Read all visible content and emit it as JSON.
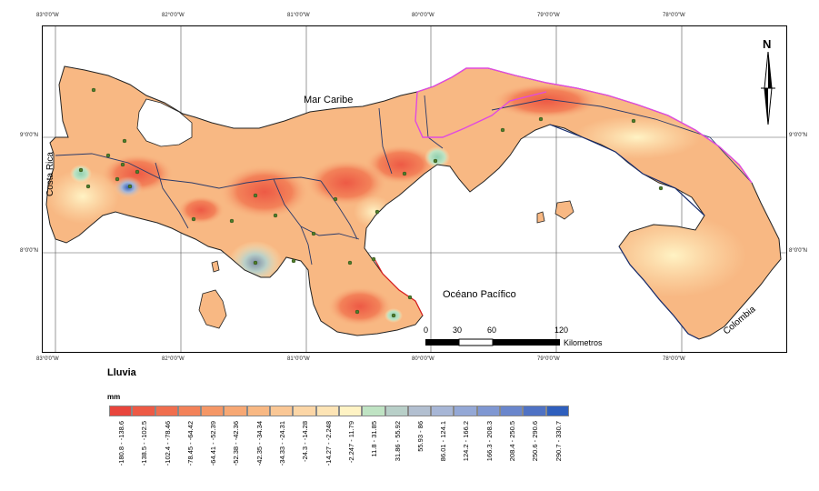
{
  "map": {
    "labels": {
      "caribbean": "Mar Caribe",
      "pacific": "Océano Pacífico",
      "costa_rica": "Costa Rica",
      "colombia": "Colombia",
      "north": "N"
    },
    "graticule": {
      "top": [
        "83°0'0\"W",
        "82°0'0\"W",
        "81°0'0\"W",
        "80°0'0\"W",
        "79°0'0\"W",
        "78°0'0\"W"
      ],
      "bottom": [
        "83°0'0\"W",
        "82°0'0\"W",
        "81°0'0\"W",
        "80°0'0\"W",
        "79°0'0\"W",
        "78°0'0\"W"
      ],
      "left": [
        "9°0'0\"N",
        "8°0'0\"N"
      ],
      "right": [
        "9°0'0\"N",
        "8°0'0\"N"
      ]
    },
    "scale_bar": {
      "ticks": [
        "0",
        "30",
        "60",
        "120"
      ],
      "unit": "Kilometros"
    }
  },
  "legend": {
    "title": "Lluvia",
    "unit": "mm",
    "classes": [
      {
        "label": "-180.8 - -138.6",
        "color": "#e8453c"
      },
      {
        "label": "-138.5 - -102.5",
        "color": "#ed5a45"
      },
      {
        "label": "-102.4 - -78.46",
        "color": "#f06e4e"
      },
      {
        "label": "-78.45 - -64.42",
        "color": "#f38259"
      },
      {
        "label": "-64.41 - -52.39",
        "color": "#f59766"
      },
      {
        "label": "-52.38 - -42.36",
        "color": "#f7a874"
      },
      {
        "label": "-42.35 - -34.34",
        "color": "#f8b883"
      },
      {
        "label": "-34.33 - -24.31",
        "color": "#fac795"
      },
      {
        "label": "-24.3 - -14.28",
        "color": "#fcd6a6"
      },
      {
        "label": "-14.27 - -2.248",
        "color": "#fde4b5"
      },
      {
        "label": "-2.247 - 11.79",
        "color": "#fff3c4"
      },
      {
        "label": "11.8 - 31.85",
        "color": "#bfe3c3"
      },
      {
        "label": "31.86 - 55.92",
        "color": "#b8cfc8"
      },
      {
        "label": "55.93 - 86",
        "color": "#b2bfd0"
      },
      {
        "label": "86.01 - 124.1",
        "color": "#a7b6d6"
      },
      {
        "label": "124.2 - 166.2",
        "color": "#94a8d6"
      },
      {
        "label": "166.3 - 208.3",
        "color": "#7f97d2"
      },
      {
        "label": "208.4 - 250.5",
        "color": "#6a86cc"
      },
      {
        "label": "250.6 - 290.6",
        "color": "#4f72c4"
      },
      {
        "label": "290.7 - 330.7",
        "color": "#2f5fbd"
      }
    ]
  }
}
